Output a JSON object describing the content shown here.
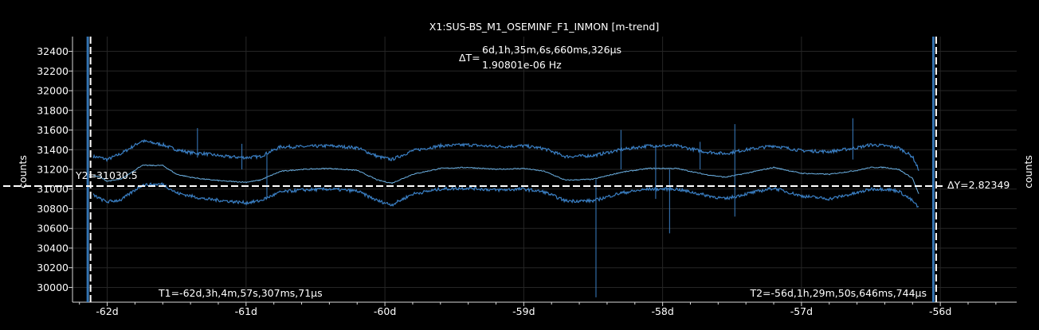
{
  "chart_data": {
    "type": "line",
    "title": "X1:SUS-BS_M1_OSEMINF_F1_INMON [m-trend]",
    "ylabel": "counts",
    "ylabel_right": "counts",
    "xlabel": "",
    "xlim": [
      -62.25,
      -55.45
    ],
    "ylim": [
      29850,
      32550
    ],
    "x_ticks": [
      -62,
      -61,
      -60,
      -59,
      -58,
      -57,
      -56
    ],
    "x_tick_labels": [
      "-62d",
      "-61d",
      "-60d",
      "-59d",
      "-58d",
      "-57d",
      "-56d"
    ],
    "y_ticks": [
      30000,
      30200,
      30400,
      30600,
      30800,
      31000,
      31200,
      31400,
      31600,
      31800,
      32000,
      32200,
      32400
    ],
    "y_tick_labels": [
      "30000",
      "30200",
      "30400",
      "30600",
      "30800",
      "31000",
      "31200",
      "31400",
      "31600",
      "31800",
      "32000",
      "32200",
      "32400"
    ],
    "grid": true,
    "series": [
      {
        "role": "max",
        "color": "#3a7fc4",
        "x": [
          -62.1,
          -62.05,
          -62.0,
          -61.9,
          -61.75,
          -61.6,
          -61.5,
          -61.4,
          -61.3,
          -61.15,
          -61.0,
          -60.9,
          -60.75,
          -60.6,
          -60.4,
          -60.2,
          -60.05,
          -59.95,
          -59.8,
          -59.6,
          -59.4,
          -59.2,
          -59.0,
          -58.85,
          -58.7,
          -58.5,
          -58.3,
          -58.1,
          -57.9,
          -57.7,
          -57.55,
          -57.4,
          -57.2,
          -57.0,
          -56.8,
          -56.6,
          -56.5,
          -56.4,
          -56.3,
          -56.2,
          -56.15
        ],
        "y": [
          31330,
          31320,
          31300,
          31360,
          31490,
          31450,
          31400,
          31370,
          31360,
          31330,
          31320,
          31330,
          31430,
          31430,
          31440,
          31420,
          31330,
          31300,
          31390,
          31440,
          31450,
          31430,
          31440,
          31410,
          31330,
          31340,
          31400,
          31440,
          31440,
          31380,
          31360,
          31400,
          31440,
          31390,
          31380,
          31420,
          31450,
          31440,
          31420,
          31330,
          31180
        ]
      },
      {
        "role": "mean",
        "color": "#6aaee0",
        "x": [
          -62.1,
          -62.05,
          -62.0,
          -61.9,
          -61.75,
          -61.6,
          -61.5,
          -61.4,
          -61.3,
          -61.15,
          -61.0,
          -60.9,
          -60.75,
          -60.6,
          -60.4,
          -60.2,
          -60.05,
          -59.95,
          -59.8,
          -59.6,
          -59.4,
          -59.2,
          -59.0,
          -58.85,
          -58.7,
          -58.5,
          -58.3,
          -58.1,
          -57.9,
          -57.7,
          -57.55,
          -57.4,
          -57.2,
          -57.0,
          -56.8,
          -56.6,
          -56.5,
          -56.4,
          -56.3,
          -56.2,
          -56.15
        ],
        "y": [
          31140,
          31120,
          31080,
          31100,
          31240,
          31240,
          31150,
          31120,
          31100,
          31080,
          31070,
          31090,
          31180,
          31200,
          31210,
          31190,
          31090,
          31060,
          31150,
          31210,
          31220,
          31200,
          31210,
          31180,
          31090,
          31100,
          31170,
          31210,
          31210,
          31150,
          31120,
          31160,
          31220,
          31160,
          31150,
          31190,
          31220,
          31220,
          31200,
          31110,
          30930
        ]
      },
      {
        "role": "min",
        "color": "#3a7fc4",
        "x": [
          -62.1,
          -62.05,
          -62.0,
          -61.9,
          -61.75,
          -61.6,
          -61.5,
          -61.4,
          -61.3,
          -61.15,
          -61.0,
          -60.9,
          -60.75,
          -60.6,
          -60.4,
          -60.2,
          -60.05,
          -59.95,
          -59.8,
          -59.6,
          -59.4,
          -59.2,
          -59.0,
          -58.85,
          -58.7,
          -58.5,
          -58.3,
          -58.1,
          -57.9,
          -57.7,
          -57.55,
          -57.4,
          -57.2,
          -57.0,
          -56.8,
          -56.6,
          -56.5,
          -56.4,
          -56.3,
          -56.2,
          -56.15
        ],
        "y": [
          30940,
          30900,
          30870,
          30890,
          31040,
          31050,
          30960,
          30930,
          30900,
          30880,
          30860,
          30880,
          30970,
          30990,
          31000,
          30980,
          30880,
          30840,
          30950,
          31000,
          31010,
          30990,
          31000,
          30970,
          30880,
          30880,
          30960,
          31000,
          31000,
          30940,
          30900,
          30950,
          31010,
          30930,
          30900,
          30960,
          31000,
          31000,
          30980,
          30880,
          30800
        ]
      }
    ],
    "spikes": [
      {
        "x": -61.35,
        "y_low": 31320,
        "y_high": 31620
      },
      {
        "x": -61.03,
        "y_low": 31200,
        "y_high": 31460
      },
      {
        "x": -60.85,
        "y_low": 30900,
        "y_high": 31350
      },
      {
        "x": -58.48,
        "y_low": 29900,
        "y_high": 31100
      },
      {
        "x": -58.3,
        "y_low": 31200,
        "y_high": 31600
      },
      {
        "x": -58.05,
        "y_low": 30900,
        "y_high": 31450
      },
      {
        "x": -57.95,
        "y_low": 30550,
        "y_high": 31200
      },
      {
        "x": -57.73,
        "y_low": 31200,
        "y_high": 31480
      },
      {
        "x": -57.48,
        "y_low": 30720,
        "y_high": 31660
      },
      {
        "x": -56.63,
        "y_low": 31300,
        "y_high": 31720
      }
    ],
    "cursors": {
      "t1_x": -62.12,
      "t2_x": -56.03,
      "y2": 31030.5,
      "t1_label": "T1=-62d,3h,4m,57s,307ms,71µs",
      "t2_label": "T2=-56d,1h,29m,50s,646ms,744µs",
      "y2_label": "Y2=31030.5",
      "dy_label": "ΔY=2.82349",
      "dt_prefix": "ΔT=",
      "dt_value": "6d,1h,35m,6s,660ms,326µs",
      "dt_freq": "1.90801e-06 Hz"
    },
    "colors": {
      "background": "#000000",
      "axis": "#d8d8d8",
      "grid": "#262626",
      "series": "#3a7fc4",
      "series_center": "#6aaee0",
      "cursor": "#ffffff"
    }
  }
}
